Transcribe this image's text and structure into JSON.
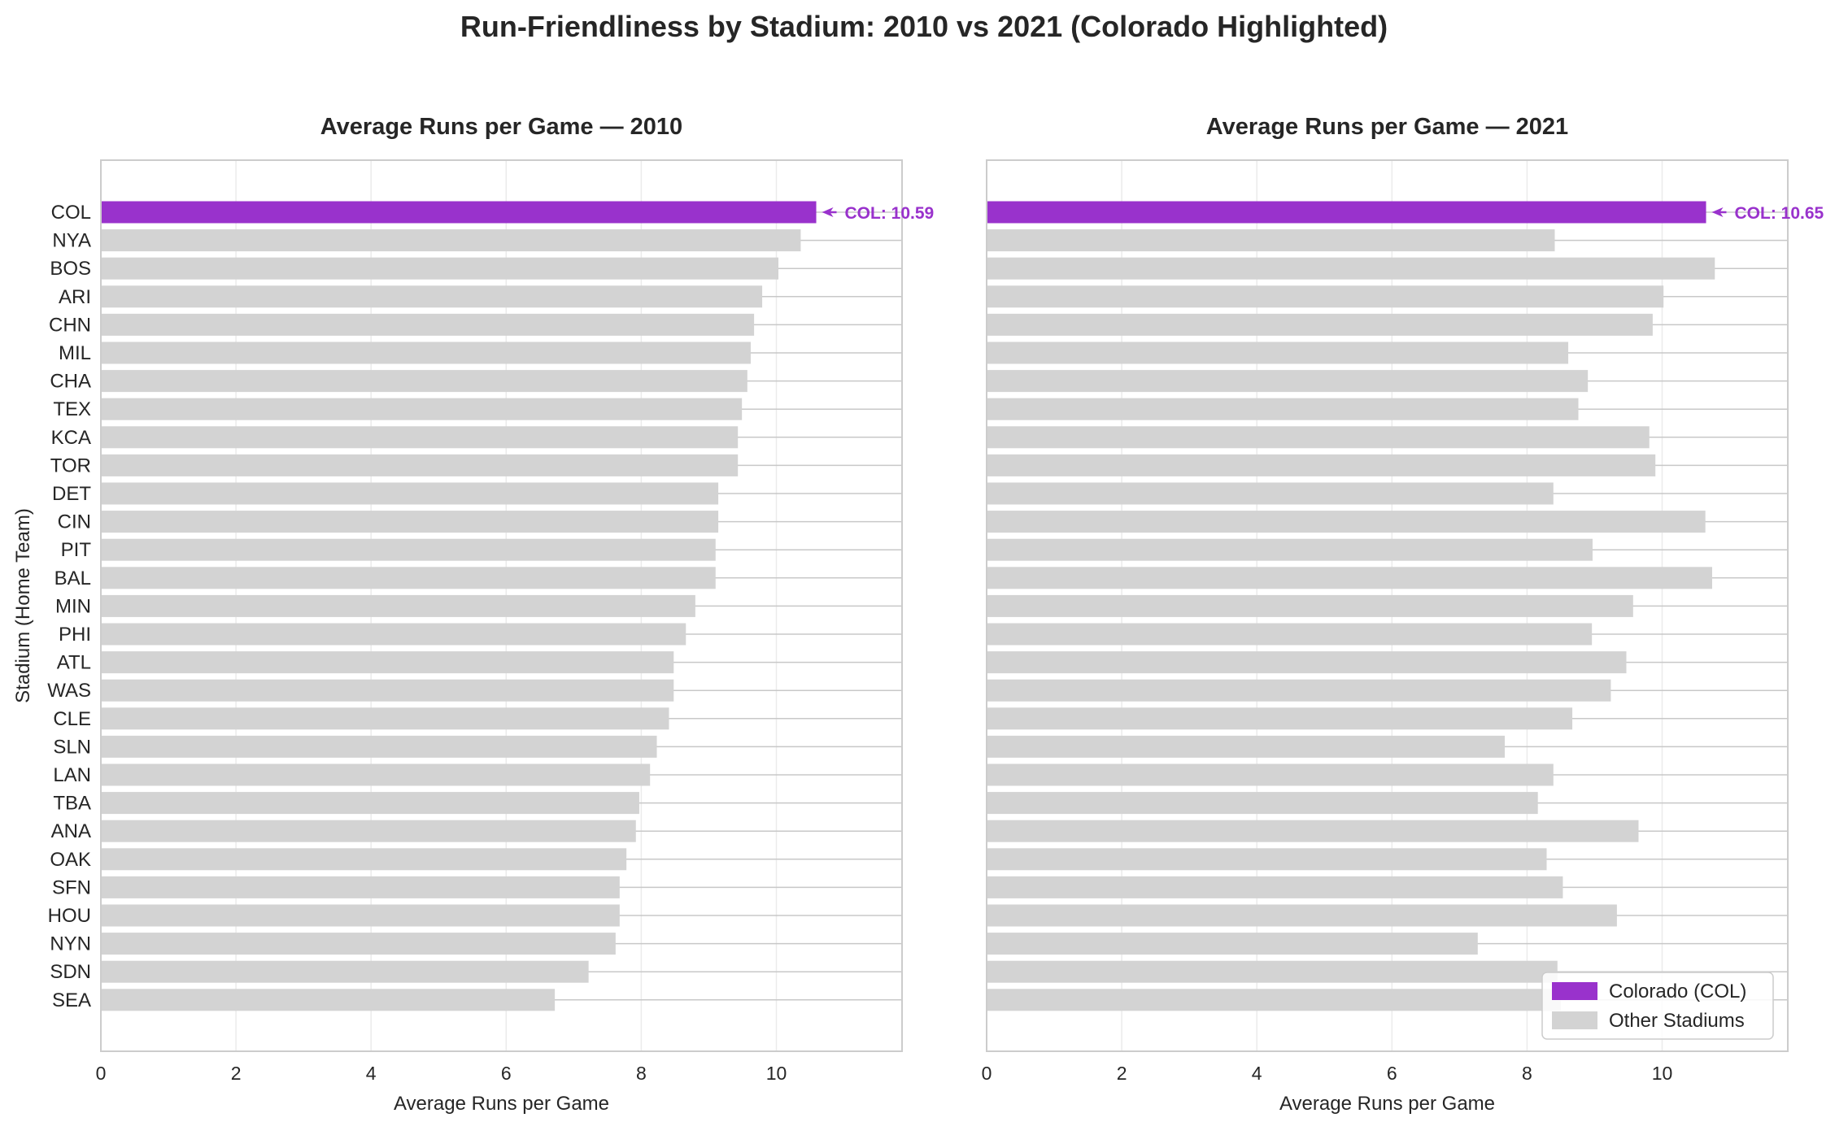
{
  "title": "Run-Friendliness by Stadium: 2010 vs 2021 (Colorado Highlighted)",
  "colors": {
    "highlight": "#9932CC",
    "other": "#D3D3D3",
    "grid": "#EBEBEB",
    "frame": "#CCCCCC"
  },
  "chart_data": [
    {
      "type": "bar",
      "orientation": "horizontal",
      "title": "Average Runs per Game — 2010",
      "xlabel": "Average Runs per Game",
      "ylabel": "Stadium (Home Team)",
      "xlim": [
        0,
        11.86
      ],
      "xticks": [
        "0",
        "2",
        "4",
        "6",
        "8",
        "10"
      ],
      "grid": true,
      "categories": [
        "COL",
        "NYA",
        "BOS",
        "ARI",
        "CHN",
        "MIL",
        "CHA",
        "TEX",
        "KCA",
        "TOR",
        "DET",
        "CIN",
        "PIT",
        "BAL",
        "MIN",
        "PHI",
        "ATL",
        "WAS",
        "CLE",
        "SLN",
        "LAN",
        "TBA",
        "ANA",
        "OAK",
        "SFN",
        "HOU",
        "NYN",
        "SDN",
        "SEA"
      ],
      "values": [
        10.59,
        10.36,
        10.03,
        9.79,
        9.67,
        9.62,
        9.57,
        9.49,
        9.43,
        9.43,
        9.14,
        9.14,
        9.1,
        9.1,
        8.8,
        8.66,
        8.48,
        8.48,
        8.41,
        8.23,
        8.13,
        7.97,
        7.92,
        7.78,
        7.68,
        7.68,
        7.62,
        7.22,
        6.72
      ],
      "highlight": "COL",
      "annotation": "COL: 10.59"
    },
    {
      "type": "bar",
      "orientation": "horizontal",
      "title": "Average Runs per Game — 2021",
      "xlabel": "Average Runs per Game",
      "ylabel": "",
      "xlim": [
        0,
        11.86
      ],
      "xticks": [
        "0",
        "2",
        "4",
        "6",
        "8",
        "10"
      ],
      "grid": true,
      "categories": [
        "COL",
        "NYA",
        "BOS",
        "ARI",
        "CHN",
        "MIL",
        "CHA",
        "TEX",
        "KCA",
        "TOR",
        "DET",
        "CIN",
        "PIT",
        "BAL",
        "MIN",
        "PHI",
        "ATL",
        "WAS",
        "CLE",
        "SLN",
        "LAN",
        "TBA",
        "ANA",
        "OAK",
        "SFN",
        "HOU",
        "NYN",
        "SDN",
        "SEA"
      ],
      "values": [
        10.65,
        8.41,
        10.78,
        10.02,
        9.86,
        8.61,
        8.9,
        8.76,
        9.81,
        9.9,
        8.39,
        10.64,
        8.97,
        10.74,
        9.57,
        8.96,
        9.47,
        9.24,
        8.67,
        7.67,
        8.39,
        8.16,
        9.65,
        8.29,
        8.53,
        9.33,
        7.27,
        8.45,
        8.5
      ],
      "highlight": "COL",
      "annotation": "COL: 10.65",
      "legend": {
        "placement": "lower-right",
        "entries": [
          "Colorado (COL)",
          "Other Stadiums"
        ]
      }
    }
  ]
}
